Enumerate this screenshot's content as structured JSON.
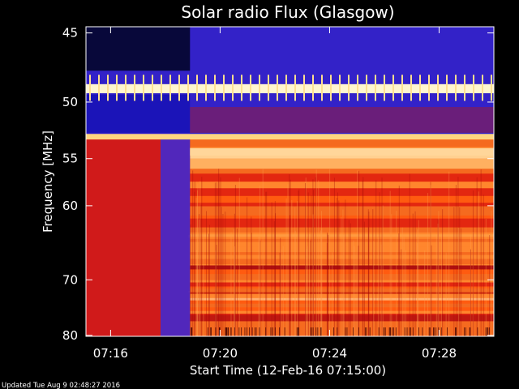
{
  "chart_data": {
    "type": "heatmap",
    "title": "Solar radio Flux (Glasgow)",
    "xlabel": "Start Time (12-Feb-16 07:15:00)",
    "ylabel": "Frequency [MHz]",
    "x_ticks": [
      "07:16",
      "07:20",
      "07:24",
      "07:28"
    ],
    "x_tick_minutes": [
      1,
      5,
      9,
      13
    ],
    "xlim_minutes": [
      0.1,
      15.0
    ],
    "y_ticks": [
      45,
      50,
      55,
      60,
      70,
      80
    ],
    "ylim": [
      44.6,
      80.2
    ],
    "y_scale": "reciprocal",
    "background_onset_minute": 3.9,
    "bright_bands_mhz": [
      48.9,
      53.0,
      54.5
    ],
    "footer": "Updated Tue Aug  9 02:48:27 2016",
    "colors": {
      "background": "#000000",
      "low_intensity": "#3b2ad8",
      "mid_intensity": "#d01a1a",
      "high_intensity": "#ff6a1a",
      "peak_intensity": "#ffd680"
    }
  }
}
